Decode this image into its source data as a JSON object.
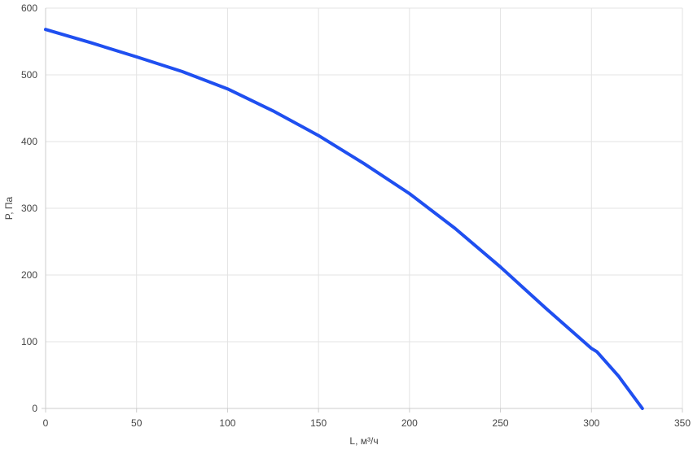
{
  "chart_data": {
    "type": "line",
    "title": "",
    "xlabel": "L, м³/ч",
    "ylabel": "P, Па",
    "xlim": [
      0,
      350
    ],
    "ylim": [
      0,
      600
    ],
    "xticks": [
      0,
      50,
      100,
      150,
      200,
      250,
      300,
      350
    ],
    "yticks": [
      0,
      100,
      200,
      300,
      400,
      500,
      600
    ],
    "grid": true,
    "series": [
      {
        "color": "#1f4ff0",
        "x": [
          0,
          25,
          50,
          75,
          100,
          125,
          150,
          175,
          200,
          225,
          250,
          275,
          300,
          303,
          315,
          328
        ],
        "y": [
          568,
          548,
          527,
          505,
          479,
          446,
          409,
          367,
          322,
          270,
          212,
          150,
          90,
          85,
          48,
          0
        ]
      }
    ]
  }
}
